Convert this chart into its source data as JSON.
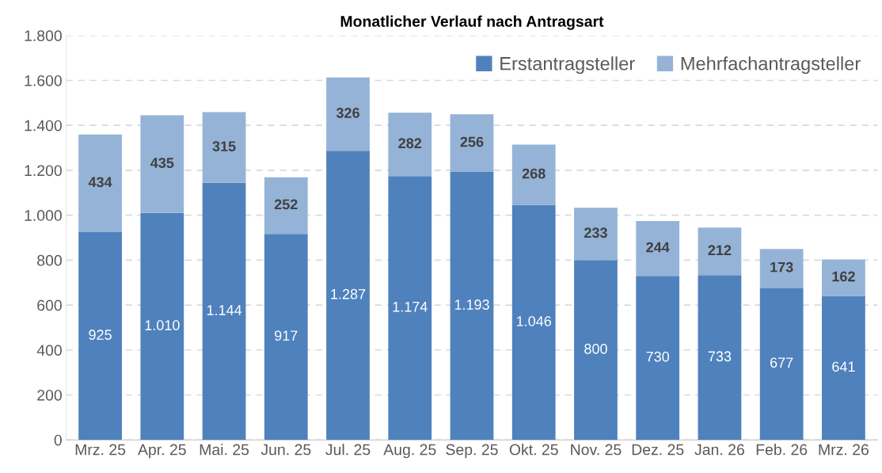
{
  "chart_data": {
    "type": "bar",
    "title": "Monatlicher Verlauf nach Antragsart",
    "categories": [
      "Mrz. 25",
      "Apr. 25",
      "Mai. 25",
      "Jun. 25",
      "Jul. 25",
      "Aug. 25",
      "Sep. 25",
      "Okt. 25",
      "Nov. 25",
      "Dez. 25",
      "Jan. 26",
      "Feb. 26",
      "Mrz. 26"
    ],
    "stacked": true,
    "series": [
      {
        "name": "Erstantragsteller",
        "color": "#4f81bd",
        "values": [
          925,
          1010,
          1144,
          917,
          1287,
          1174,
          1193,
          1046,
          800,
          730,
          733,
          677,
          641
        ],
        "value_labels": [
          "925",
          "1.010",
          "1.144",
          "917",
          "1.287",
          "1.174",
          "1.193",
          "1.046",
          "800",
          "730",
          "733",
          "677",
          "641"
        ]
      },
      {
        "name": "Mehrfachantragsteller",
        "color": "#95b3d7",
        "values": [
          434,
          435,
          315,
          252,
          326,
          282,
          256,
          268,
          233,
          244,
          212,
          173,
          162
        ],
        "value_labels": [
          "434",
          "435",
          "315",
          "252",
          "326",
          "282",
          "256",
          "268",
          "233",
          "244",
          "212",
          "173",
          "162"
        ]
      }
    ],
    "ylim": [
      0,
      1800
    ],
    "yticks": [
      0,
      200,
      400,
      600,
      800,
      {
        "value": 1000,
        "label": "1.000"
      },
      {
        "value": 1200,
        "label": "1.200"
      },
      {
        "value": 1400,
        "label": "1.400"
      },
      {
        "value": 1600,
        "label": "1.600"
      },
      {
        "value": 1800,
        "label": "1.800"
      }
    ],
    "grid": "y",
    "legend": "top right"
  }
}
